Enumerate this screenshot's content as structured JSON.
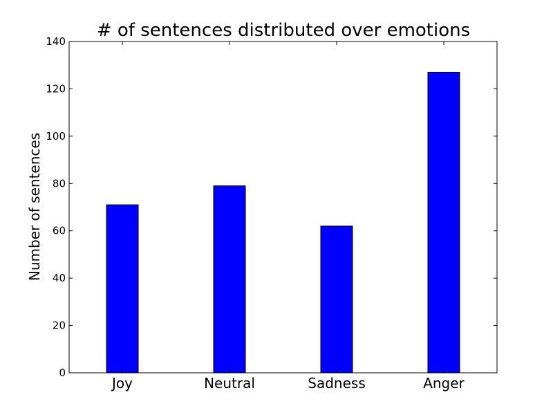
{
  "chart_data": {
    "type": "bar",
    "title": "# of sentences distributed over emotions",
    "xlabel": "",
    "ylabel": "Number of sentences",
    "categories": [
      "Joy",
      "Neutral",
      "Sadness",
      "Anger"
    ],
    "values": [
      71,
      79,
      62,
      127
    ],
    "ylim": [
      0,
      140
    ],
    "yticks": [
      0,
      20,
      40,
      60,
      80,
      100,
      120,
      140
    ],
    "bar_color": "#0000ff",
    "grid": false,
    "legend": "none"
  }
}
